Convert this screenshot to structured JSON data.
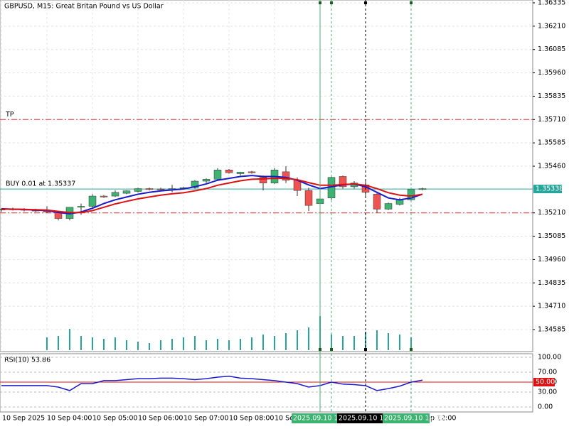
{
  "chart_data": {
    "type": "candlestick",
    "title": "GBPUSD, M15:  Great Britan Pound vs US Dollar",
    "categories": [
      "10 Sep 2025",
      null,
      null,
      null,
      "10 Sep 04:00",
      null,
      null,
      null,
      "10 Sep 05:00",
      null,
      null,
      null,
      "10 Sep 06:00",
      null,
      null,
      null,
      "10 Sep 07:00",
      null,
      null,
      null,
      "10 Sep 08:00",
      null,
      null,
      null,
      "10 Sep 09:00",
      null,
      null,
      null,
      "10 Sep 10:00",
      null,
      null,
      null,
      "10 Sep 11:00",
      null,
      null,
      null,
      "10 Sep 12:00",
      null
    ],
    "open": [
      1.35225,
      1.3523,
      1.35228,
      1.35225,
      1.3522,
      1.35215,
      1.3518,
      1.3524,
      1.35245,
      1.353,
      1.353,
      1.35315,
      1.35325,
      1.3534,
      1.35338,
      1.35335,
      1.3534,
      1.35345,
      1.3538,
      1.3539,
      1.3544,
      1.3542,
      1.3543,
      1.354,
      1.3537,
      1.3543,
      1.35385,
      1.3533,
      1.3526,
      1.3529,
      1.35405,
      1.3535,
      1.3536,
      1.3531,
      1.3523,
      1.35255,
      1.3528,
      1.35335
    ],
    "high": [
      1.35235,
      1.35238,
      1.35235,
      1.35232,
      1.35245,
      1.3522,
      1.3524,
      1.3526,
      1.3531,
      1.35305,
      1.3533,
      1.3533,
      1.35345,
      1.35345,
      1.35345,
      1.3536,
      1.3535,
      1.35385,
      1.35395,
      1.3545,
      1.35445,
      1.3543,
      1.35435,
      1.3541,
      1.3545,
      1.3546,
      1.354,
      1.35345,
      1.353,
      1.3541,
      1.3541,
      1.3538,
      1.3538,
      1.3532,
      1.35265,
      1.3529,
      1.35345,
      1.35345
    ],
    "low": [
      1.35215,
      1.35222,
      1.35218,
      1.35215,
      1.3521,
      1.3517,
      1.3517,
      1.352,
      1.3524,
      1.3529,
      1.35295,
      1.3531,
      1.3532,
      1.3533,
      1.35325,
      1.3532,
      1.35335,
      1.3534,
      1.3537,
      1.35385,
      1.3542,
      1.3541,
      1.3542,
      1.3533,
      1.35365,
      1.3537,
      1.353,
      1.3522,
      1.3525,
      1.3528,
      1.3534,
      1.3534,
      1.353,
      1.3521,
      1.35225,
      1.3525,
      1.35275,
      1.3533
    ],
    "close": [
      1.3523,
      1.35228,
      1.35225,
      1.3522,
      1.35215,
      1.3518,
      1.3524,
      1.35245,
      1.353,
      1.35295,
      1.3532,
      1.35328,
      1.3534,
      1.35335,
      1.35335,
      1.3534,
      1.35345,
      1.3538,
      1.3539,
      1.3544,
      1.35425,
      1.35428,
      1.35425,
      1.3537,
      1.3544,
      1.35385,
      1.3533,
      1.3525,
      1.35285,
      1.354,
      1.3535,
      1.3537,
      1.3532,
      1.3523,
      1.3526,
      1.3528,
      1.35335,
      1.3534
    ],
    "volume": [
      0,
      0,
      0,
      0,
      18,
      20,
      30,
      20,
      18,
      16,
      18,
      14,
      12,
      10,
      14,
      16,
      18,
      20,
      14,
      16,
      14,
      16,
      18,
      22,
      20,
      24,
      28,
      32,
      48,
      22,
      20,
      20,
      26,
      28,
      24,
      22,
      18,
      0
    ],
    "bull_color": "#3cb371",
    "bear_color": "#ef5350",
    "volume_color": "#26a69a",
    "series": [
      {
        "name": "MA fast",
        "color": "#1a1acc",
        "values": [
          1.35232,
          1.3523,
          1.35228,
          1.35225,
          1.35222,
          1.35212,
          1.35205,
          1.35215,
          1.35235,
          1.3526,
          1.3528,
          1.35295,
          1.3531,
          1.3532,
          1.35328,
          1.35333,
          1.35338,
          1.3535,
          1.35365,
          1.35385,
          1.35395,
          1.35405,
          1.3541,
          1.35405,
          1.35405,
          1.354,
          1.35385,
          1.3536,
          1.3534,
          1.3535,
          1.3536,
          1.35365,
          1.3535,
          1.3532,
          1.3529,
          1.3528,
          1.3529,
          1.3531
        ]
      },
      {
        "name": "MA slow",
        "color": "#dd1111",
        "values": [
          1.3523,
          1.3523,
          1.35229,
          1.35227,
          1.35225,
          1.35218,
          1.35212,
          1.35212,
          1.35222,
          1.3524,
          1.35258,
          1.35272,
          1.35285,
          1.35295,
          1.35305,
          1.35312,
          1.35318,
          1.35328,
          1.3534,
          1.35358,
          1.3537,
          1.35382,
          1.3539,
          1.35392,
          1.35395,
          1.35395,
          1.35388,
          1.35372,
          1.35358,
          1.35358,
          1.35362,
          1.35365,
          1.35358,
          1.3534,
          1.35318,
          1.35305,
          1.353,
          1.3531
        ]
      }
    ],
    "ylim": [
      1.34585,
      1.36335
    ],
    "yticks": [
      1.36335,
      {
        "value": 1.3621,
        "label": "1.36210"
      },
      1.36085,
      {
        "value": 1.3596,
        "label": "1.35960"
      },
      1.35835,
      {
        "value": 1.3571,
        "label": "1.35710"
      },
      1.35585,
      {
        "value": 1.3546,
        "label": "1.35460"
      },
      {
        "value": 1.3521,
        "label": "1.35210"
      },
      1.35085,
      {
        "value": 1.3496,
        "label": "1.34960"
      },
      1.34835,
      {
        "value": 1.3471,
        "label": "1.34710"
      },
      1.34585
    ],
    "grid": true,
    "levels": [
      {
        "name": "TP",
        "value": 1.3571,
        "color": "#dd3333"
      },
      {
        "name": "BUY 0.01 at 1.35337",
        "value": 1.35338,
        "label": "1.35338",
        "color": "#26a69a"
      },
      {
        "value": 1.3521,
        "color": "#dd3333"
      }
    ],
    "vlines": [
      {
        "candle": 28,
        "label": "2025.09.10 10:00",
        "color": "#3cb371",
        "dashed": false
      },
      {
        "candle": 29,
        "color": "#3cb371",
        "dashed": true
      },
      {
        "candle": 32,
        "label": "2025.09.10 11:00",
        "color": "#000000",
        "dashed": true
      },
      {
        "candle": 36,
        "label": "2025.09.10 12:00",
        "color": "#3cb371",
        "dashed": true
      }
    ],
    "rsi": {
      "title": "RSI(10) 53.86",
      "color": "#1a1acc",
      "values": [
        43,
        43,
        43,
        43,
        43,
        40,
        33,
        47,
        47,
        53,
        53,
        55,
        57,
        57,
        58,
        58,
        57,
        55,
        57,
        60,
        62,
        58,
        57,
        55,
        53,
        50,
        47,
        40,
        43,
        50,
        46,
        45,
        43,
        33,
        37,
        42,
        50,
        53.86
      ],
      "ylim": [
        0,
        100
      ],
      "yticks": [
        {
          "value": 100,
          "label": "100.00"
        },
        {
          "value": 70,
          "label": "70.00"
        },
        {
          "value": 50,
          "label": "50.00"
        },
        {
          "value": 30,
          "label": "30.00"
        },
        {
          "value": 0,
          "label": "0.00"
        }
      ],
      "level": {
        "value": 50,
        "label": "50.00",
        "color": "#dd1111"
      }
    }
  }
}
